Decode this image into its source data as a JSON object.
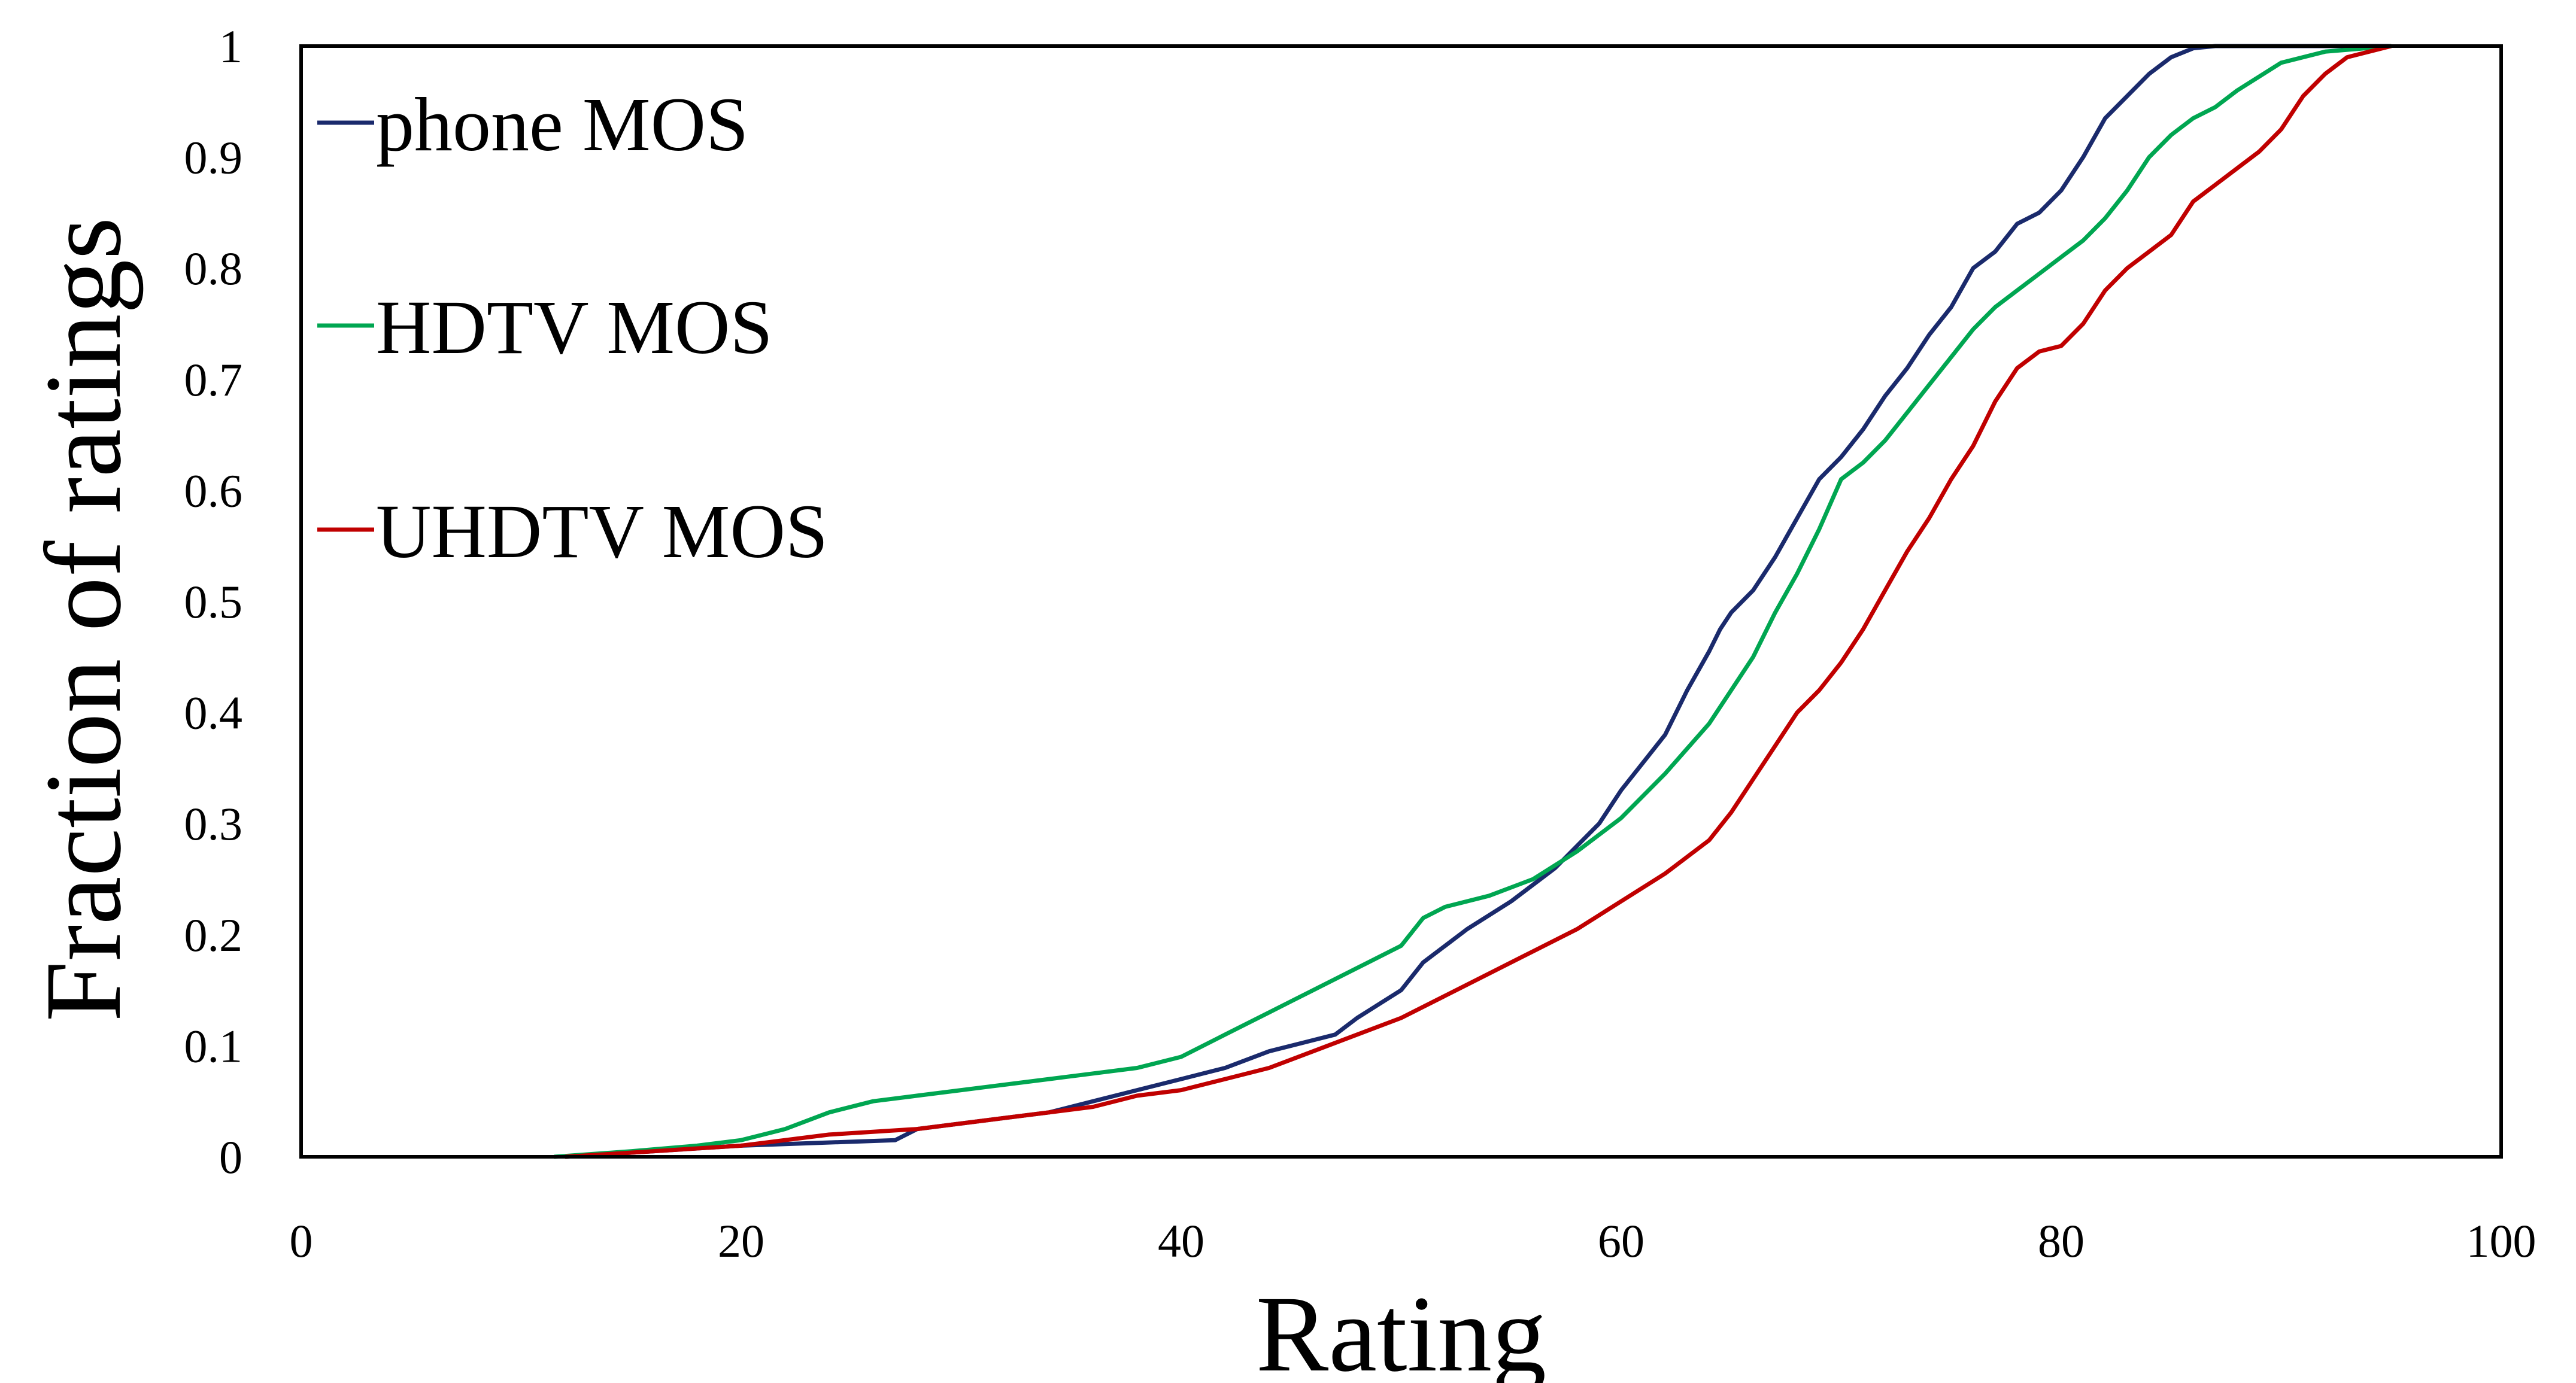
{
  "chart_data": {
    "type": "line",
    "title": "",
    "xlabel": "Rating",
    "ylabel": "Fraction of ratings",
    "xlim": [
      0,
      100
    ],
    "ylim": [
      0,
      1
    ],
    "x_ticks": [
      0,
      20,
      40,
      60,
      80,
      100
    ],
    "x_tick_labels": [
      "0",
      "20",
      "40",
      "60",
      "80",
      "100"
    ],
    "y_ticks": [
      0,
      0.1,
      0.2,
      0.3,
      0.4,
      0.5,
      0.6,
      0.7,
      0.8,
      0.9,
      1
    ],
    "y_tick_labels": [
      "0",
      "0.1",
      "0.2",
      "0.3",
      "0.4",
      "0.5",
      "0.6",
      "0.7",
      "0.8",
      "0.9",
      "1"
    ],
    "grid": false,
    "legend_position": "top-left",
    "series": [
      {
        "name": "phone MOS",
        "color": "#1a2a6c",
        "x": [
          12,
          20,
          27,
          28,
          32,
          34,
          36,
          38,
          40,
          42,
          44,
          46,
          47,
          48,
          50,
          51,
          52,
          53,
          55,
          57,
          58,
          59,
          60,
          61,
          62,
          63,
          64,
          64.5,
          65,
          66,
          67,
          68,
          69,
          70,
          71,
          72,
          73,
          74,
          75,
          76,
          77,
          78,
          79,
          80,
          81,
          82,
          83,
          84,
          85,
          86,
          87,
          88,
          89,
          95
        ],
        "y": [
          0,
          0.01,
          0.015,
          0.025,
          0.035,
          0.04,
          0.05,
          0.06,
          0.07,
          0.08,
          0.095,
          0.105,
          0.11,
          0.125,
          0.15,
          0.175,
          0.19,
          0.205,
          0.23,
          0.26,
          0.28,
          0.3,
          0.33,
          0.355,
          0.38,
          0.42,
          0.455,
          0.475,
          0.49,
          0.51,
          0.54,
          0.575,
          0.61,
          0.63,
          0.655,
          0.685,
          0.71,
          0.74,
          0.765,
          0.8,
          0.815,
          0.84,
          0.85,
          0.87,
          0.9,
          0.935,
          0.955,
          0.975,
          0.99,
          0.998,
          1,
          1,
          1,
          1
        ]
      },
      {
        "name": "HDTV MOS",
        "color": "#00a651",
        "x": [
          11.5,
          15,
          18,
          20,
          22,
          24,
          26,
          28,
          30,
          32,
          34,
          36,
          38,
          40,
          42,
          44,
          46,
          48,
          50,
          51,
          52,
          54,
          56,
          58,
          60,
          62,
          64,
          66,
          67,
          68,
          69,
          70,
          71,
          72,
          73,
          74,
          75,
          76,
          77,
          78,
          79,
          80,
          81,
          82,
          83,
          84,
          85,
          86,
          87,
          88,
          90,
          92,
          95
        ],
        "y": [
          0,
          0.005,
          0.01,
          0.015,
          0.025,
          0.04,
          0.05,
          0.055,
          0.06,
          0.065,
          0.07,
          0.075,
          0.08,
          0.09,
          0.11,
          0.13,
          0.15,
          0.17,
          0.19,
          0.215,
          0.225,
          0.235,
          0.25,
          0.275,
          0.305,
          0.345,
          0.39,
          0.45,
          0.49,
          0.525,
          0.565,
          0.61,
          0.625,
          0.645,
          0.67,
          0.695,
          0.72,
          0.745,
          0.765,
          0.78,
          0.795,
          0.81,
          0.825,
          0.845,
          0.87,
          0.9,
          0.92,
          0.935,
          0.945,
          0.96,
          0.985,
          0.995,
          1
        ]
      },
      {
        "name": "UHDTV MOS",
        "color": "#c00000",
        "x": [
          12,
          16,
          20,
          24,
          28,
          32,
          36,
          38,
          40,
          42,
          44,
          46,
          48,
          50,
          52,
          54,
          56,
          58,
          60,
          62,
          64,
          65,
          66,
          67,
          68,
          69,
          70,
          71,
          72,
          73,
          74,
          75,
          76,
          77,
          78,
          79,
          80,
          81,
          82,
          83,
          84,
          85,
          86,
          87,
          88,
          89,
          90,
          91,
          92,
          93,
          95
        ],
        "y": [
          0,
          0.005,
          0.01,
          0.02,
          0.025,
          0.035,
          0.045,
          0.055,
          0.06,
          0.07,
          0.08,
          0.095,
          0.11,
          0.125,
          0.145,
          0.165,
          0.185,
          0.205,
          0.23,
          0.255,
          0.285,
          0.31,
          0.34,
          0.37,
          0.4,
          0.42,
          0.445,
          0.475,
          0.51,
          0.545,
          0.575,
          0.61,
          0.64,
          0.68,
          0.71,
          0.725,
          0.73,
          0.75,
          0.78,
          0.8,
          0.815,
          0.83,
          0.86,
          0.875,
          0.89,
          0.905,
          0.925,
          0.955,
          0.975,
          0.99,
          1
        ]
      }
    ]
  }
}
